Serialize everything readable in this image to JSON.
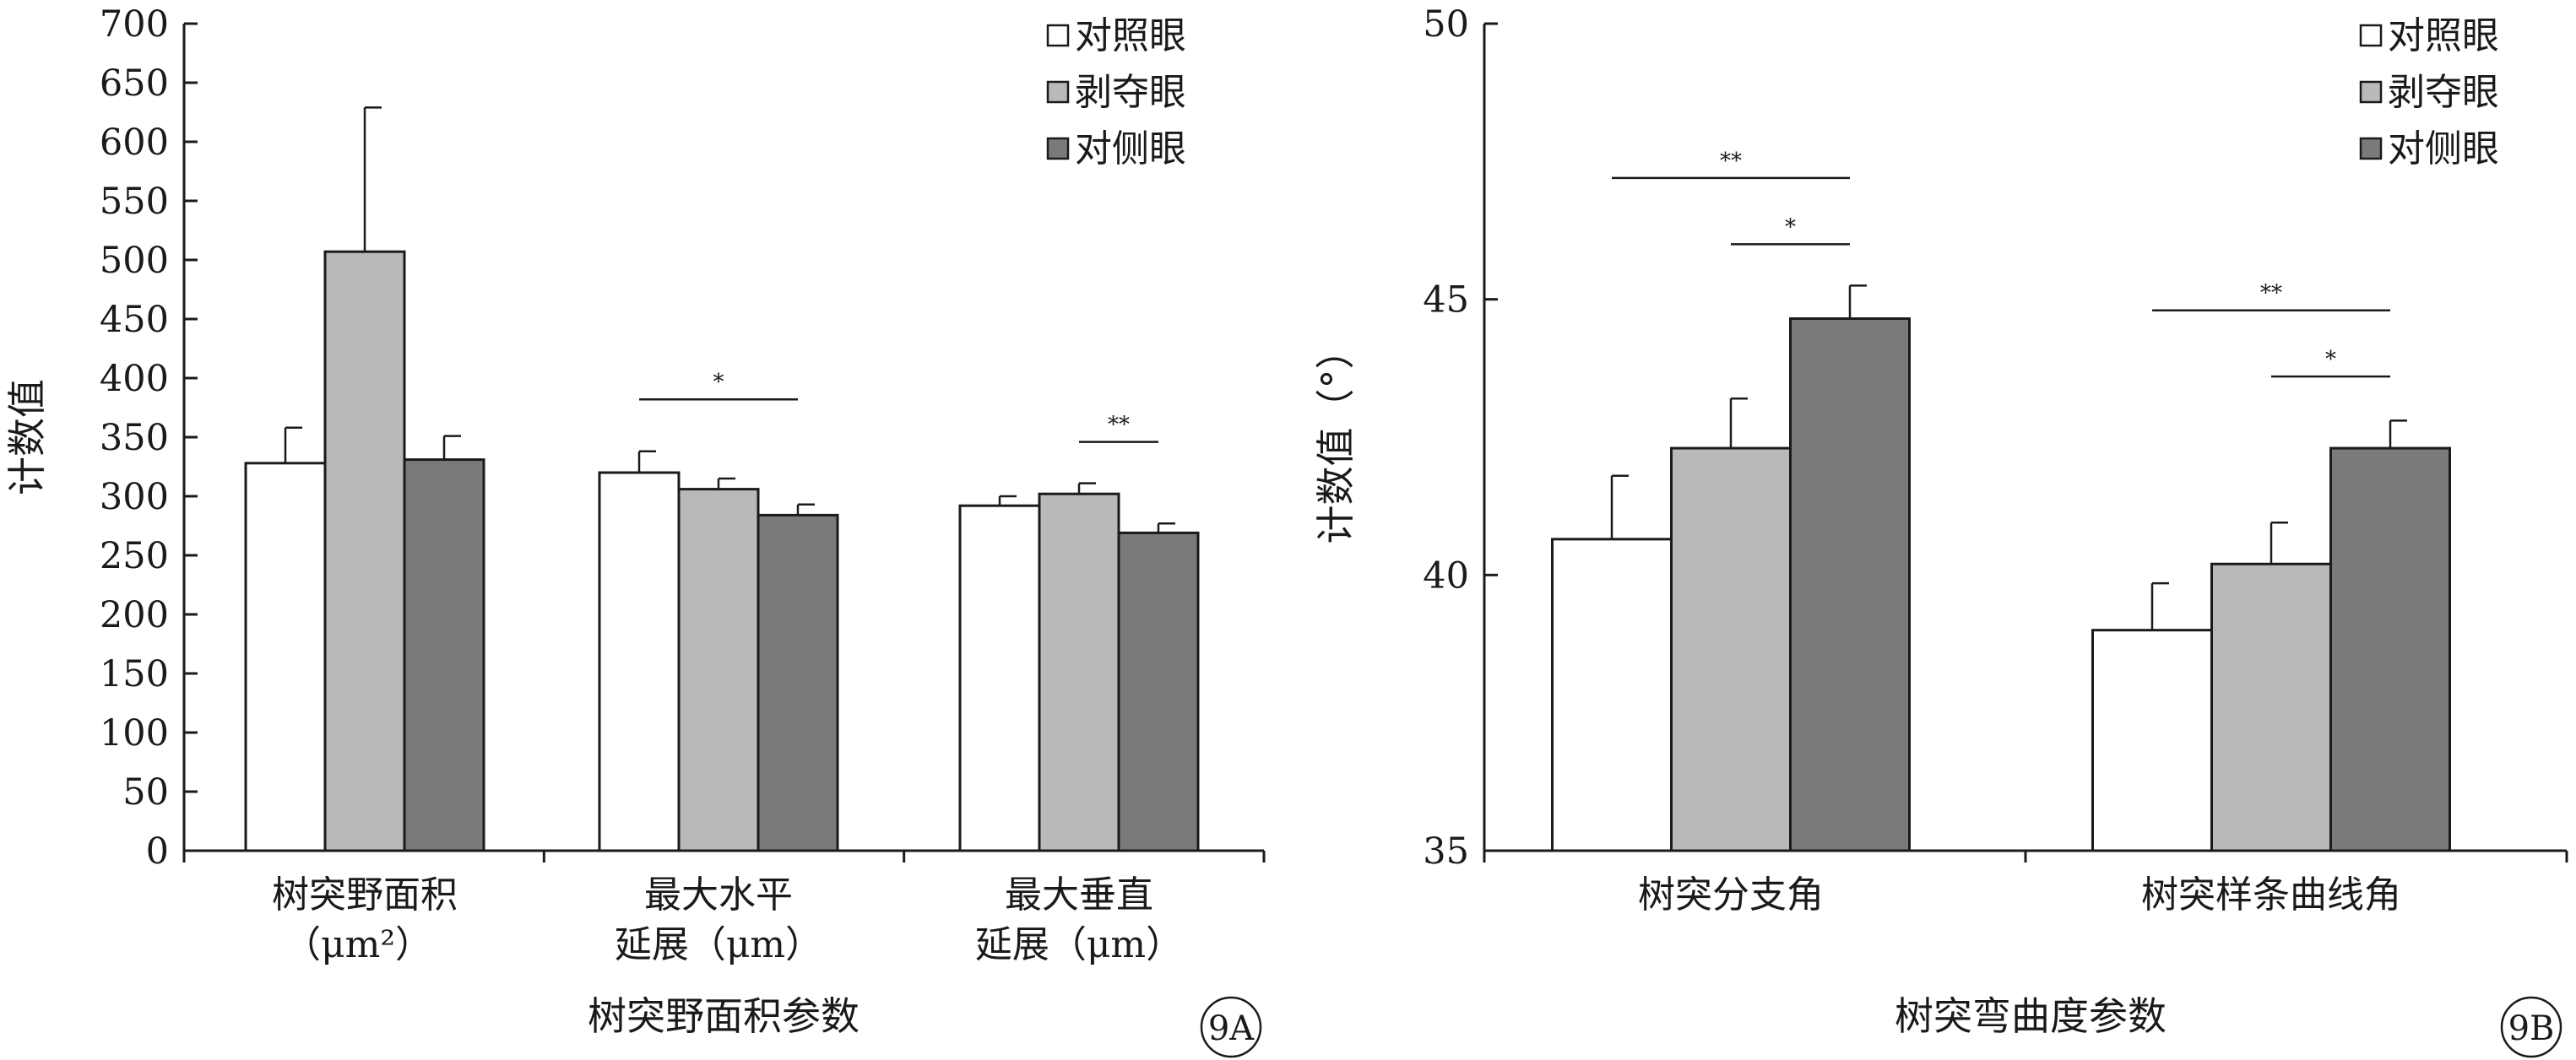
{
  "legend": {
    "items": [
      {
        "label": "对照眼",
        "color": "#ffffff"
      },
      {
        "label": "剥夺眼",
        "color": "#b9b9b9"
      },
      {
        "label": "对侧眼",
        "color": "#7a7a7a"
      }
    ]
  },
  "chart_data": [
    {
      "type": "bar",
      "id": "9A",
      "panel_label": "9A",
      "ylabel": "计数值",
      "xlabel": "树突野面积参数",
      "ylim": [
        0,
        700
      ],
      "yticks": [
        0,
        50,
        100,
        150,
        200,
        250,
        300,
        350,
        400,
        450,
        500,
        550,
        600,
        650,
        700
      ],
      "categories": [
        {
          "lines": [
            "树突野面积",
            "（μm²）"
          ]
        },
        {
          "lines": [
            "最大水平",
            "延展（μm）"
          ]
        },
        {
          "lines": [
            "最大垂直",
            "延展（μm）"
          ]
        }
      ],
      "series": [
        {
          "name": "对照眼",
          "color": "#ffffff",
          "values": [
            328,
            320,
            292
          ],
          "errors": [
            30,
            18,
            8
          ]
        },
        {
          "name": "剥夺眼",
          "color": "#b9b9b9",
          "values": [
            507,
            306,
            302
          ],
          "errors": [
            122,
            9,
            9
          ]
        },
        {
          "name": "对侧眼",
          "color": "#7a7a7a",
          "values": [
            331,
            284,
            269
          ],
          "errors": [
            20,
            9,
            8
          ]
        }
      ],
      "significance": [
        {
          "category": 1,
          "from_series": 0,
          "to_series": 2,
          "y": 382,
          "label": "*"
        },
        {
          "category": 2,
          "from_series": 1,
          "to_series": 2,
          "y": 346,
          "label": "**"
        }
      ]
    },
    {
      "type": "bar",
      "id": "9B",
      "panel_label": "9B",
      "ylabel": "计数值（°）",
      "xlabel": "树突弯曲度参数",
      "ylim": [
        35,
        50
      ],
      "yticks": [
        35,
        40,
        45,
        50
      ],
      "categories": [
        {
          "lines": [
            "树突分支角"
          ]
        },
        {
          "lines": [
            "树突样条曲线角"
          ]
        }
      ],
      "series": [
        {
          "name": "对照眼",
          "color": "#ffffff",
          "values": [
            40.65,
            39.0
          ],
          "errors": [
            1.15,
            0.85
          ]
        },
        {
          "name": "剥夺眼",
          "color": "#b9b9b9",
          "values": [
            42.3,
            40.2
          ],
          "errors": [
            0.9,
            0.75
          ]
        },
        {
          "name": "对侧眼",
          "color": "#7a7a7a",
          "values": [
            44.65,
            42.3
          ],
          "errors": [
            0.6,
            0.5
          ]
        }
      ],
      "significance": [
        {
          "category": 0,
          "from_series": 0,
          "to_series": 2,
          "y": 47.2,
          "label": "**"
        },
        {
          "category": 0,
          "from_series": 1,
          "to_series": 2,
          "y": 46.0,
          "label": "*"
        },
        {
          "category": 1,
          "from_series": 0,
          "to_series": 2,
          "y": 44.8,
          "label": "**"
        },
        {
          "category": 1,
          "from_series": 1,
          "to_series": 2,
          "y": 43.6,
          "label": "*"
        }
      ]
    }
  ]
}
